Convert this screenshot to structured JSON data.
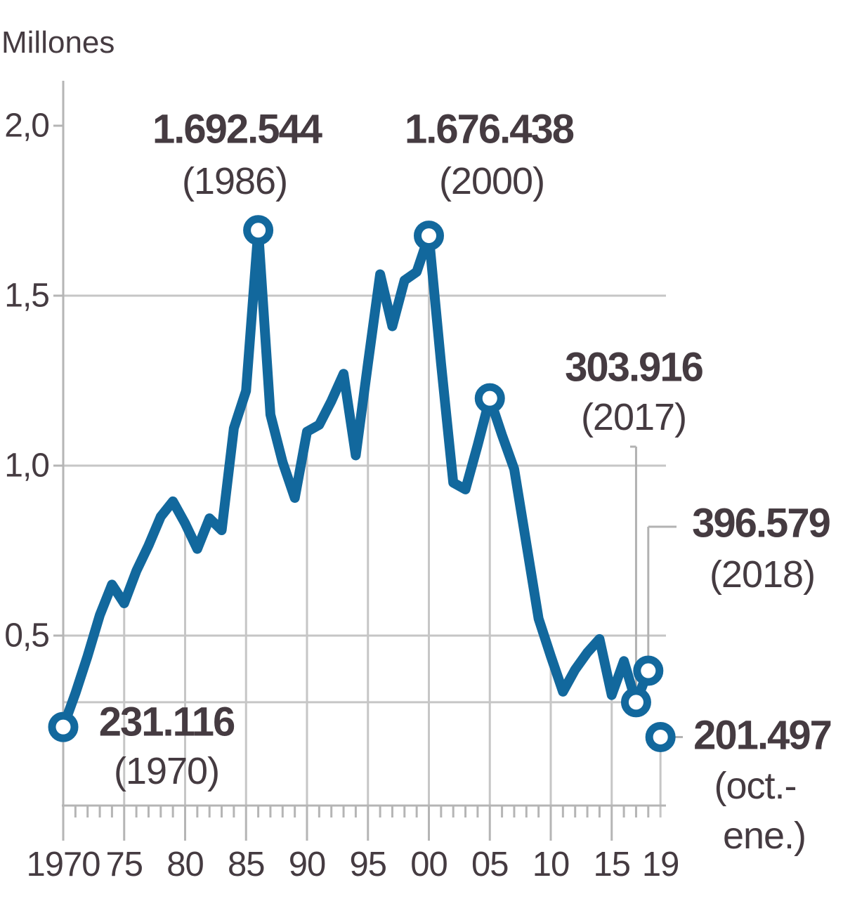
{
  "title": "Millones",
  "colors": {
    "line": "#12689d",
    "grid": "#c6c6c6",
    "axis": "#b5b5b5",
    "leader": "#b2b2b2",
    "text": "#453b41",
    "background": "#ffffff"
  },
  "y_axis": {
    "tick_labels": [
      "2,0",
      "1,5",
      "1,0",
      "0,5"
    ],
    "tick_values": [
      2.0,
      1.5,
      1.0,
      0.5
    ]
  },
  "x_axis": {
    "tick_labels": [
      "1970",
      "75",
      "80",
      "85",
      "90",
      "95",
      "00",
      "05",
      "10",
      "15",
      "19"
    ],
    "tick_years": [
      1970,
      1975,
      1980,
      1985,
      1990,
      1995,
      2000,
      2005,
      2010,
      2015,
      2019
    ]
  },
  "chart_data": {
    "type": "line",
    "title": "Millones",
    "ylabel": "Millones",
    "ylim": [
      0,
      2.0
    ],
    "xlim": [
      1970,
      2019
    ],
    "grid": "horizontal gridlines at 0.5 intervals; vertical drop-lines under curve every 5 years",
    "legend": "none",
    "x": [
      1970,
      1971,
      1972,
      1973,
      1974,
      1975,
      1976,
      1977,
      1978,
      1979,
      1980,
      1981,
      1982,
      1983,
      1984,
      1985,
      1986,
      1987,
      1988,
      1989,
      1990,
      1991,
      1992,
      1993,
      1994,
      1995,
      1996,
      1997,
      1998,
      1999,
      2000,
      2001,
      2002,
      2003,
      2004,
      2005,
      2006,
      2007,
      2008,
      2009,
      2010,
      2011,
      2012,
      2013,
      2014,
      2015,
      2016,
      2017,
      2018
    ],
    "values": [
      0.231116,
      0.33,
      0.44,
      0.56,
      0.65,
      0.595,
      0.69,
      0.765,
      0.85,
      0.895,
      0.83,
      0.755,
      0.845,
      0.81,
      1.11,
      1.22,
      1.692544,
      1.15,
      1.01,
      0.905,
      1.1,
      1.12,
      1.19,
      1.27,
      1.03,
      1.3,
      1.563,
      1.41,
      1.545,
      1.57,
      1.676438,
      1.3,
      0.95,
      0.93,
      1.06,
      1.198,
      1.09,
      0.99,
      0.77,
      0.55,
      0.44,
      0.335,
      0.4,
      0.45,
      0.49,
      0.325,
      0.425,
      0.303916,
      0.396579
    ],
    "partial_point": {
      "year": 2019,
      "value": 0.201497,
      "note": "oct.-ene., not connected to line"
    },
    "marked_years": [
      1970,
      1986,
      2000,
      2005,
      2017,
      2018
    ],
    "reference_line_value": 0.303916
  },
  "annotations": [
    {
      "key": "a1986",
      "value": "1.692.544",
      "year": "(1986)"
    },
    {
      "key": "a2000",
      "value": "1.676.438",
      "year": "(2000)"
    },
    {
      "key": "a2017",
      "value": "303.916",
      "year": "(2017)"
    },
    {
      "key": "a2018",
      "value": "396.579",
      "year": "(2018)"
    },
    {
      "key": "a1970",
      "value": "231.116",
      "year": "(1970)"
    },
    {
      "key": "aoct",
      "value": "201.497",
      "year": "(oct.-",
      "year2": "ene.)"
    }
  ]
}
